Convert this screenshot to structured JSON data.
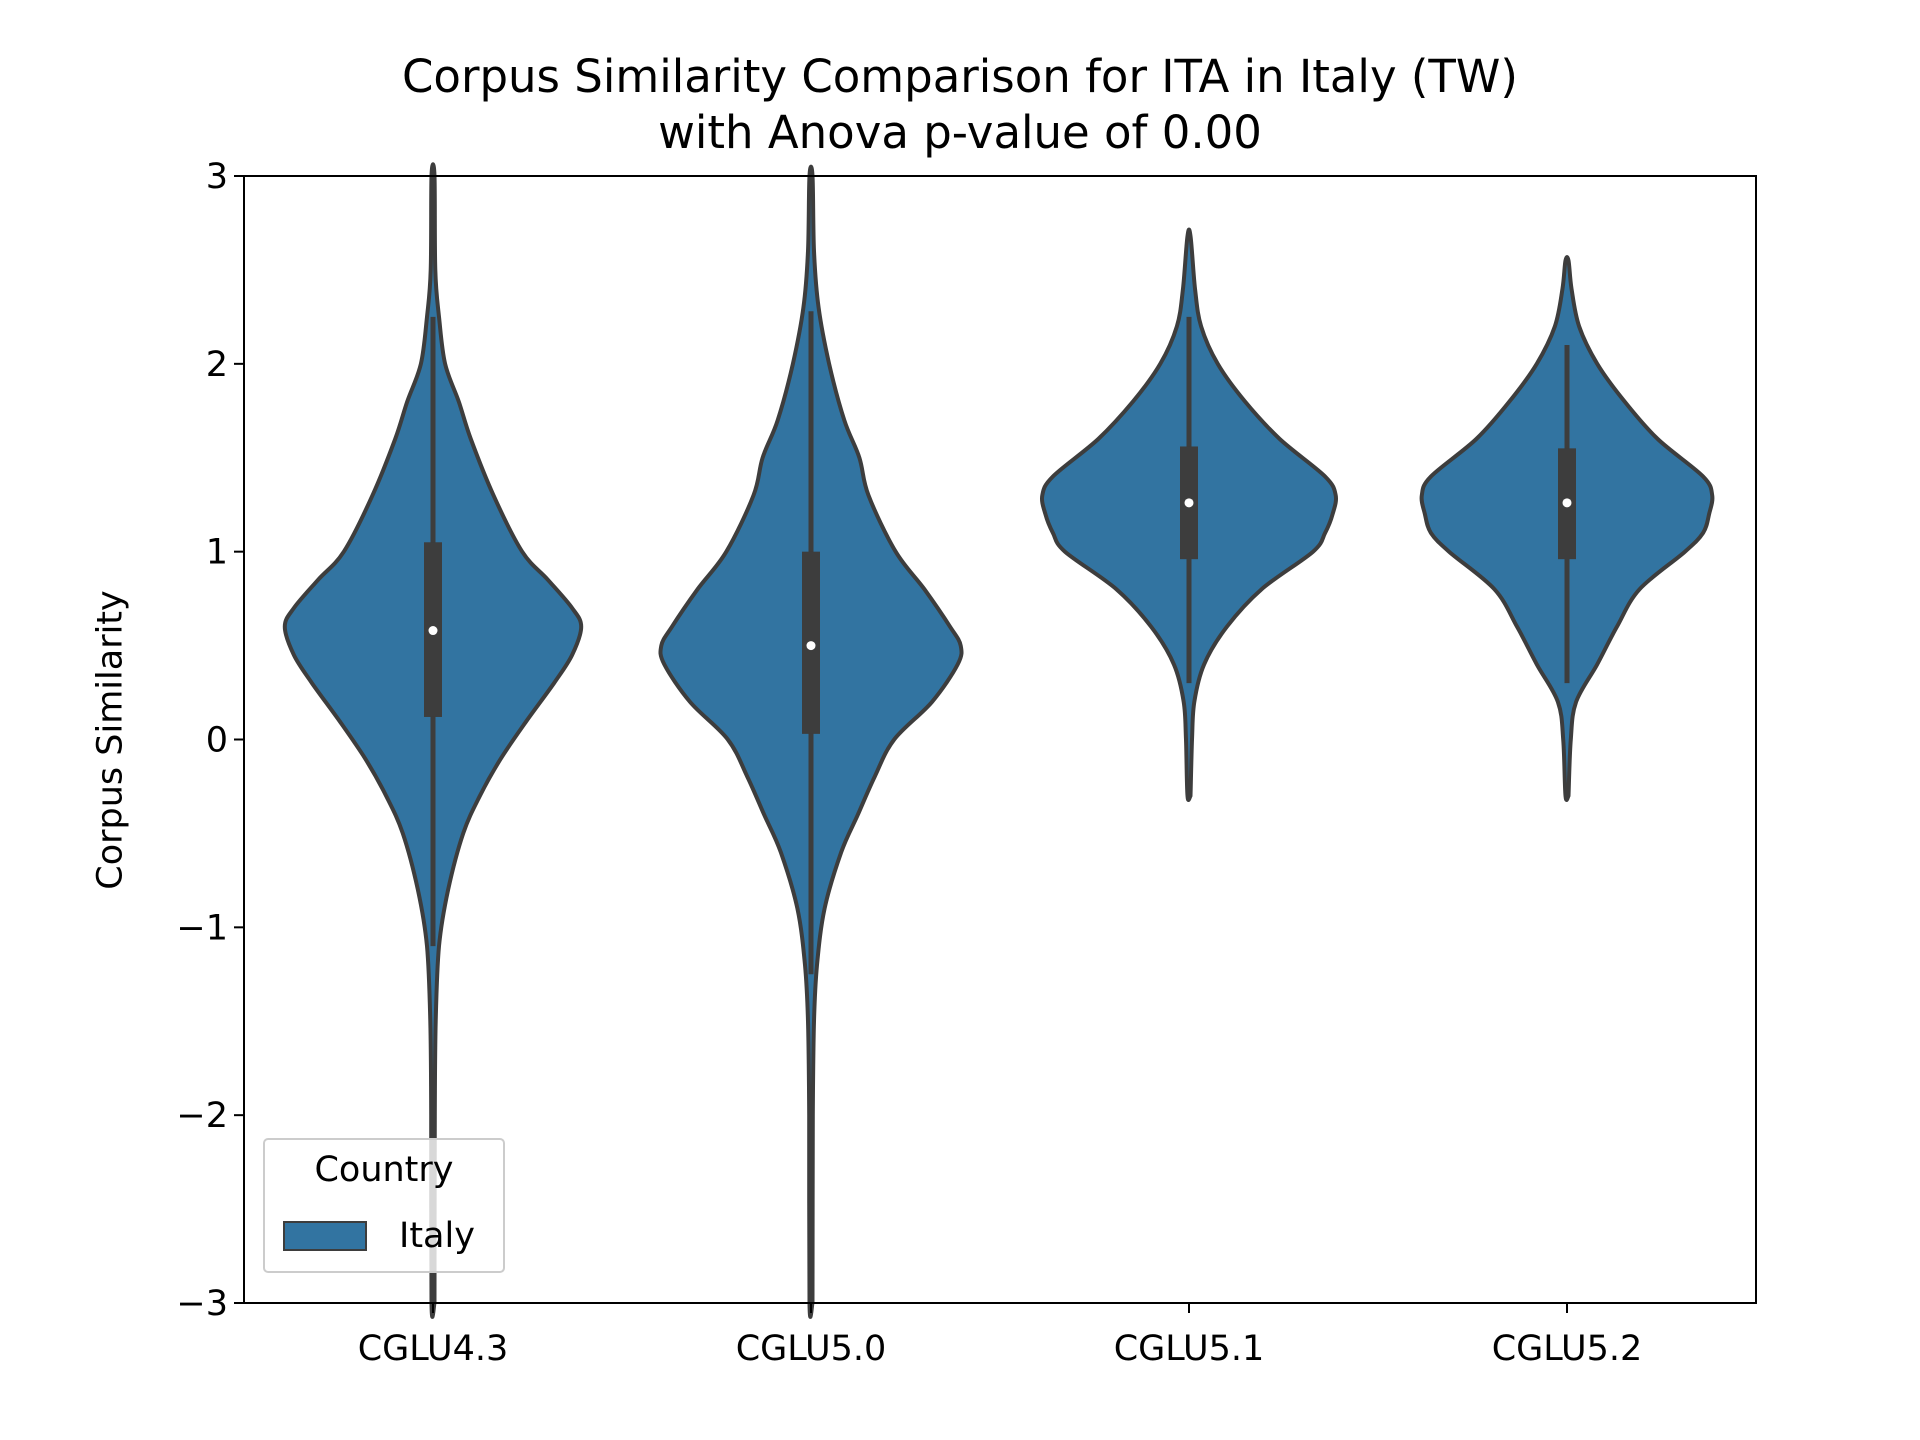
{
  "title": {
    "line1": "Corpus Similarity Comparison for ITA in Italy (TW)",
    "line2": "with Anova p-value of 0.00"
  },
  "chart_data": {
    "type": "violin",
    "categories": [
      "CGLU4.3",
      "CGLU5.0",
      "CGLU5.1",
      "CGLU5.2"
    ],
    "ylabel": "Corpus Similarity",
    "xlabel": "",
    "ylim": [
      -3,
      3
    ],
    "yticks": [
      -3,
      -2,
      -1,
      0,
      1,
      2,
      3
    ],
    "ytick_labels": [
      "−3",
      "−2",
      "−1",
      "0",
      "1",
      "2",
      "3"
    ],
    "grid": false,
    "legend": {
      "title": "Country",
      "placement": "lower-left",
      "entries": [
        "Italy"
      ]
    },
    "series": [
      {
        "name": "Italy",
        "color": "#3274a1",
        "violins": [
          {
            "category": "CGLU4.3",
            "median": 0.58,
            "q1": 0.12,
            "q3": 1.05,
            "whisker_low": -1.1,
            "whisker_high": 2.25,
            "density": [
              [
                -3.0,
                0.01
              ],
              [
                -2.0,
                0.012
              ],
              [
                -1.5,
                0.018
              ],
              [
                -1.1,
                0.04
              ],
              [
                -0.8,
                0.1
              ],
              [
                -0.5,
                0.2
              ],
              [
                -0.3,
                0.31
              ],
              [
                -0.1,
                0.45
              ],
              [
                0.1,
                0.62
              ],
              [
                0.3,
                0.8
              ],
              [
                0.45,
                0.92
              ],
              [
                0.6,
                0.98
              ],
              [
                0.7,
                0.92
              ],
              [
                0.85,
                0.76
              ],
              [
                1.0,
                0.59
              ],
              [
                1.3,
                0.4
              ],
              [
                1.6,
                0.25
              ],
              [
                1.8,
                0.17
              ],
              [
                2.0,
                0.08
              ],
              [
                2.25,
                0.04
              ],
              [
                2.5,
                0.015
              ],
              [
                3.0,
                0.01
              ]
            ]
          },
          {
            "category": "CGLU5.0",
            "median": 0.5,
            "q1": 0.03,
            "q3": 1.0,
            "whisker_low": -1.25,
            "whisker_high": 2.28,
            "density": [
              [
                -3.0,
                0.01
              ],
              [
                -2.0,
                0.012
              ],
              [
                -1.5,
                0.02
              ],
              [
                -1.2,
                0.04
              ],
              [
                -0.9,
                0.09
              ],
              [
                -0.6,
                0.2
              ],
              [
                -0.4,
                0.31
              ],
              [
                -0.2,
                0.42
              ],
              [
                0.0,
                0.55
              ],
              [
                0.2,
                0.8
              ],
              [
                0.4,
                0.97
              ],
              [
                0.5,
                0.99
              ],
              [
                0.6,
                0.92
              ],
              [
                0.8,
                0.75
              ],
              [
                1.0,
                0.56
              ],
              [
                1.3,
                0.38
              ],
              [
                1.5,
                0.32
              ],
              [
                1.7,
                0.22
              ],
              [
                2.0,
                0.12
              ],
              [
                2.3,
                0.05
              ],
              [
                2.6,
                0.02
              ],
              [
                3.0,
                0.01
              ]
            ]
          },
          {
            "category": "CGLU5.1",
            "median": 1.26,
            "q1": 0.96,
            "q3": 1.56,
            "whisker_low": 0.3,
            "whisker_high": 2.25,
            "density": [
              [
                -0.3,
                0.01
              ],
              [
                0.0,
                0.02
              ],
              [
                0.2,
                0.035
              ],
              [
                0.4,
                0.1
              ],
              [
                0.6,
                0.25
              ],
              [
                0.8,
                0.48
              ],
              [
                1.0,
                0.82
              ],
              [
                1.1,
                0.9
              ],
              [
                1.2,
                0.95
              ],
              [
                1.3,
                0.97
              ],
              [
                1.4,
                0.9
              ],
              [
                1.6,
                0.6
              ],
              [
                1.8,
                0.37
              ],
              [
                2.0,
                0.19
              ],
              [
                2.2,
                0.08
              ],
              [
                2.4,
                0.04
              ],
              [
                2.68,
                0.01
              ]
            ]
          },
          {
            "category": "CGLU5.2",
            "median": 1.26,
            "q1": 0.96,
            "q3": 1.55,
            "whisker_low": 0.3,
            "whisker_high": 2.1,
            "density": [
              [
                -0.3,
                0.01
              ],
              [
                0.0,
                0.025
              ],
              [
                0.2,
                0.06
              ],
              [
                0.4,
                0.2
              ],
              [
                0.6,
                0.33
              ],
              [
                0.8,
                0.48
              ],
              [
                1.0,
                0.78
              ],
              [
                1.1,
                0.9
              ],
              [
                1.2,
                0.94
              ],
              [
                1.3,
                0.96
              ],
              [
                1.4,
                0.9
              ],
              [
                1.6,
                0.6
              ],
              [
                1.8,
                0.38
              ],
              [
                2.0,
                0.2
              ],
              [
                2.2,
                0.08
              ],
              [
                2.4,
                0.03
              ],
              [
                2.55,
                0.01
              ]
            ]
          }
        ]
      }
    ]
  }
}
